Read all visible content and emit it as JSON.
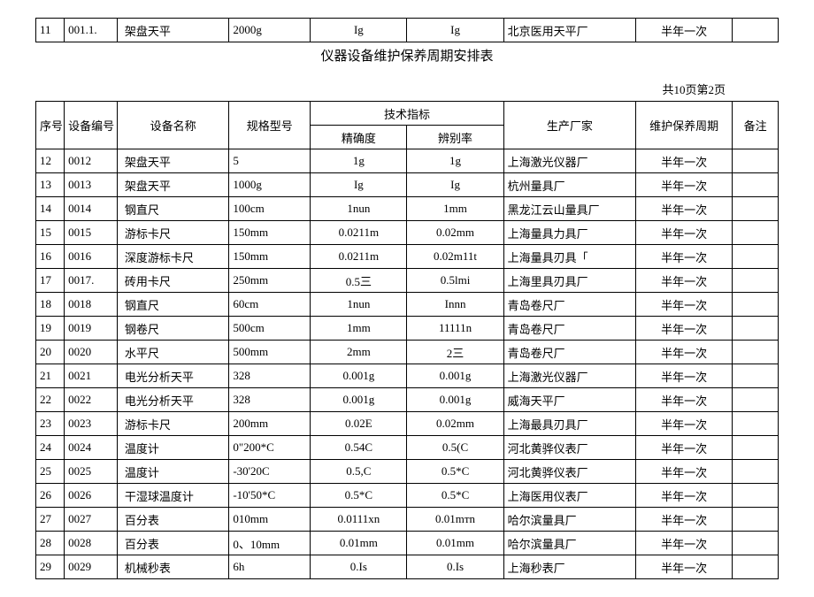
{
  "title": "仪器设备维护保养周期安排表",
  "pageInfo": "共10页第2页",
  "topRow": {
    "seq": "11",
    "id": "001.1.",
    "name": "架盘天平",
    "spec": "2000g",
    "acc": "Ig",
    "res": "Ig",
    "mfr": "北京医用天平厂",
    "cycle": "半年一次",
    "note": ""
  },
  "headers": {
    "seq": "序号",
    "id": "设备编号",
    "name": "设备名称",
    "spec": "规格型号",
    "techGroup": "技术指标",
    "acc": "精确度",
    "res": "辨别率",
    "mfr": "生产厂家",
    "cycle": "维护保养周期",
    "note": "备注"
  },
  "rows": [
    {
      "seq": "12",
      "id": "0012",
      "name": "架盘天平",
      "spec": "5",
      "acc": "1g",
      "res": "1g",
      "mfr": "上海激光仪器厂",
      "cycle": "半年一次",
      "note": ""
    },
    {
      "seq": "13",
      "id": "0013",
      "name": "架盘天平",
      "spec": "1000g",
      "acc": "Ig",
      "res": "Ig",
      "mfr": "杭州量具厂",
      "cycle": "半年一次",
      "note": ""
    },
    {
      "seq": "14",
      "id": "0014",
      "name": "钢直尺",
      "spec": "100cm",
      "acc": "1nun",
      "res": "1mm",
      "mfr": "黑龙江云山量具厂",
      "cycle": "半年一次",
      "note": ""
    },
    {
      "seq": "15",
      "id": "0015",
      "name": "游标卡尺",
      "spec": "150mm",
      "acc": "0.0211m",
      "res": "0.02mm",
      "mfr": "上海量具力具厂",
      "cycle": "半年一次",
      "note": ""
    },
    {
      "seq": "16",
      "id": "0016",
      "name": "深度游标卡尺",
      "spec": "150mm",
      "acc": "0.0211m",
      "res": "0.02m11t",
      "mfr": "上海量具刃具「",
      "cycle": "半年一次",
      "note": ""
    },
    {
      "seq": "17",
      "id": "0017.",
      "name": "砖用卡尺",
      "spec": "250mm",
      "acc": "0.5三",
      "res": "0.5lmi",
      "mfr": "上海里具刃具厂",
      "cycle": "半年一次",
      "note": ""
    },
    {
      "seq": "18",
      "id": "0018",
      "name": "钢直尺",
      "spec": "60cm",
      "acc": "1nun",
      "res": "Innn",
      "mfr": "青岛卷尺厂",
      "cycle": "半年一次",
      "note": ""
    },
    {
      "seq": "19",
      "id": "0019",
      "name": "钢卷尺",
      "spec": "500cm",
      "acc": "1mm",
      "res": "11111n",
      "mfr": "青岛卷尺厂",
      "cycle": "半年一次",
      "note": ""
    },
    {
      "seq": "20",
      "id": "0020",
      "name": "水平尺",
      "spec": "500mm",
      "acc": "2mm",
      "res": "2三",
      "mfr": "青岛卷尺厂",
      "cycle": "半年一次",
      "note": ""
    },
    {
      "seq": "21",
      "id": "0021",
      "name": "电光分析天平",
      "spec": "328",
      "acc": "0.001g",
      "res": "0.001g",
      "mfr": "上海激光仪器厂",
      "cycle": "半年一次",
      "note": ""
    },
    {
      "seq": "22",
      "id": "0022",
      "name": "电光分析天平",
      "spec": "328",
      "acc": "0.001g",
      "res": "0.001g",
      "mfr": "威海天平厂",
      "cycle": "半年一次",
      "note": ""
    },
    {
      "seq": "23",
      "id": "0023",
      "name": "游标卡尺",
      "spec": "200mm",
      "acc": "0.02E",
      "res": "0.02mm",
      "mfr": "上海最具刃具厂",
      "cycle": "半年一次",
      "note": ""
    },
    {
      "seq": "24",
      "id": "0024",
      "name": "温度计",
      "spec": "0\"200*C",
      "acc": "0.54C",
      "res": "0.5(C",
      "mfr": "河北黄骅仪表厂",
      "cycle": "半年一次",
      "note": ""
    },
    {
      "seq": "25",
      "id": "0025",
      "name": "温度计",
      "spec": "-30'20C",
      "acc": "0.5,C",
      "res": "0.5*C",
      "mfr": "河北黄骅仪表厂",
      "cycle": "半年一次",
      "note": ""
    },
    {
      "seq": "26",
      "id": "0026",
      "name": "干湿球温度计",
      "spec": "-10'50*C",
      "acc": "0.5*C",
      "res": "0.5*C",
      "mfr": "上海医用仪表厂",
      "cycle": "半年一次",
      "note": ""
    },
    {
      "seq": "27",
      "id": "0027",
      "name": "百分表",
      "spec": "010mm",
      "acc": "0.0111xn",
      "res": "0.01mтn",
      "mfr": "哈尔滨量具厂",
      "cycle": "半年一次",
      "note": ""
    },
    {
      "seq": "28",
      "id": "0028",
      "name": "百分表",
      "spec": "0、10mm",
      "acc": "0.01mm",
      "res": "0.01mm",
      "mfr": "哈尔滨量具厂",
      "cycle": "半年一次",
      "note": ""
    },
    {
      "seq": "29",
      "id": "0029",
      "name": "机械秒表",
      "spec": "6h",
      "acc": "0.Is",
      "res": "0.Is",
      "mfr": "上海秒表厂",
      "cycle": "半年一次",
      "note": ""
    }
  ]
}
